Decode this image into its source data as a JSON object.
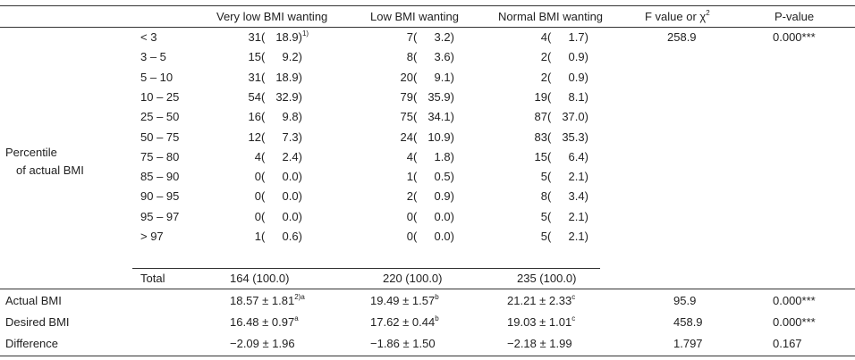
{
  "header": {
    "col_very_low": "Very low BMI wanting",
    "col_low": "Low BMI wanting",
    "col_normal": "Normal BMI wanting",
    "col_f": "F value or χ",
    "col_f_sup": "2",
    "col_p": "P-value"
  },
  "percentile_group": {
    "label_line1": "Percentile",
    "label_line2": "of actual BMI"
  },
  "percentile_rows": [
    {
      "range": "< 3",
      "vl_n": "31",
      "vl_p": "18.9)",
      "vl_sup": "1)",
      "lo_n": "7",
      "lo_p": "3.2)",
      "no_n": "4",
      "no_p": "1.7)",
      "f": "258.9",
      "p": "0.000***"
    },
    {
      "range": "3 – 5",
      "vl_n": "15",
      "vl_p": "9.2)",
      "vl_sup": "",
      "lo_n": "8",
      "lo_p": "3.6)",
      "no_n": "2",
      "no_p": "0.9)",
      "f": "",
      "p": ""
    },
    {
      "range": "5 – 10",
      "vl_n": "31",
      "vl_p": "18.9)",
      "vl_sup": "",
      "lo_n": "20",
      "lo_p": "9.1)",
      "no_n": "2",
      "no_p": "0.9)",
      "f": "",
      "p": ""
    },
    {
      "range": "10 – 25",
      "vl_n": "54",
      "vl_p": "32.9)",
      "vl_sup": "",
      "lo_n": "79",
      "lo_p": "35.9)",
      "no_n": "19",
      "no_p": "8.1)",
      "f": "",
      "p": ""
    },
    {
      "range": "25 – 50",
      "vl_n": "16",
      "vl_p": "9.8)",
      "vl_sup": "",
      "lo_n": "75",
      "lo_p": "34.1)",
      "no_n": "87",
      "no_p": "37.0)",
      "f": "",
      "p": ""
    },
    {
      "range": "50 – 75",
      "vl_n": "12",
      "vl_p": "7.3)",
      "vl_sup": "",
      "lo_n": "24",
      "lo_p": "10.9)",
      "no_n": "83",
      "no_p": "35.3)",
      "f": "",
      "p": ""
    },
    {
      "range": "75 – 80",
      "vl_n": "4",
      "vl_p": "2.4)",
      "vl_sup": "",
      "lo_n": "4",
      "lo_p": "1.8)",
      "no_n": "15",
      "no_p": "6.4)",
      "f": "",
      "p": ""
    },
    {
      "range": "85 – 90",
      "vl_n": "0",
      "vl_p": "0.0)",
      "vl_sup": "",
      "lo_n": "1",
      "lo_p": "0.5)",
      "no_n": "5",
      "no_p": "2.1)",
      "f": "",
      "p": ""
    },
    {
      "range": "90 – 95",
      "vl_n": "0",
      "vl_p": "0.0)",
      "vl_sup": "",
      "lo_n": "2",
      "lo_p": "0.9)",
      "no_n": "8",
      "no_p": "3.4)",
      "f": "",
      "p": ""
    },
    {
      "range": "95 – 97",
      "vl_n": "0",
      "vl_p": "0.0)",
      "vl_sup": "",
      "lo_n": "0",
      "lo_p": "0.0)",
      "no_n": "5",
      "no_p": "2.1)",
      "f": "",
      "p": ""
    },
    {
      "range": "> 97",
      "vl_n": "1",
      "vl_p": "0.6)",
      "vl_sup": "",
      "lo_n": "0",
      "lo_p": "0.0)",
      "no_n": "5",
      "no_p": "2.1)",
      "f": "",
      "p": ""
    }
  ],
  "total_row": {
    "label": "Total",
    "very_low": "164 (100.0)",
    "low": "220 (100.0)",
    "normal": "235 (100.0)"
  },
  "summary_rows": [
    {
      "label": "Actual BMI",
      "vl": "18.57 ± 1.81",
      "vl_sup": "2)a",
      "lo": "19.49 ± 1.57",
      "lo_sup": "b",
      "no": "21.21 ± 2.33",
      "no_sup": "c",
      "f": "95.9",
      "p": "0.000***"
    },
    {
      "label": "Desired BMI",
      "vl": "16.48 ± 0.97",
      "vl_sup": "a",
      "lo": "17.62 ± 0.44",
      "lo_sup": "b",
      "no": "19.03 ± 1.01",
      "no_sup": "c",
      "f": "458.9",
      "p": "0.000***"
    },
    {
      "label": "Difference",
      "vl": "−2.09 ± 1.96",
      "vl_sup": "",
      "lo": "−1.86 ± 1.50",
      "lo_sup": "",
      "no": "−2.18 ± 1.99",
      "no_sup": "",
      "f": "1.797",
      "p": "0.167"
    }
  ]
}
